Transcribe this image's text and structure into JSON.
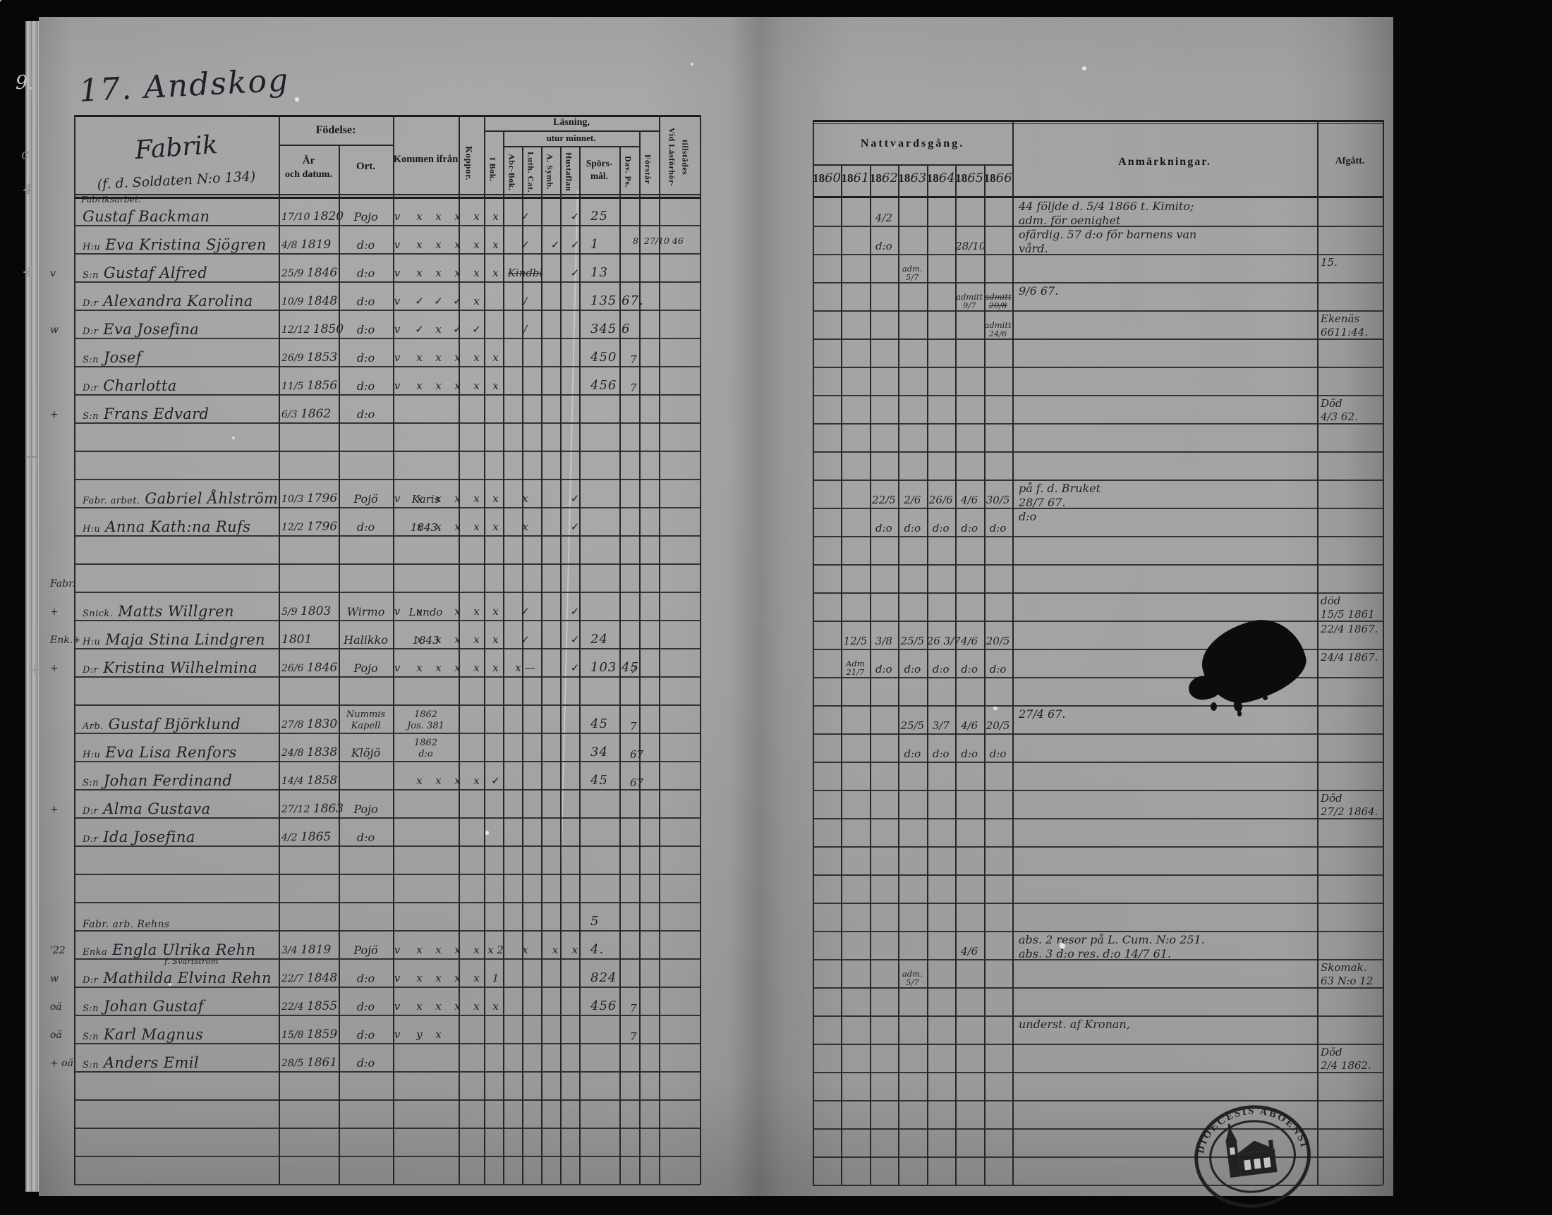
{
  "misc": {
    "title": "17. Andskog",
    "edge_marks": [
      "9.",
      "c",
      "4",
      "+",
      "+",
      "+"
    ],
    "stamp_text": "DIOECESIS ABOENSIS",
    "ink_color": "#20202a",
    "page_color": "#c9c9c9"
  },
  "left_table": {
    "fabrik": "Fabrik",
    "fabrik_sub": "(f. d. Soldaten N:o 134)",
    "fodelse": "Födelse:",
    "ar": "År",
    "och_datum": "och datum.",
    "ort": "Ort.",
    "kommen": "Kommen ifrån",
    "koppor": "Koppor.",
    "lasning": "Läsning,",
    "utur": "utur minnet.",
    "ibok": "I Bok.",
    "abc": "Abc-Bok.",
    "luth": "Luth. Cat.",
    "symb": "A. Symb.",
    "hust": "Hustaflan",
    "spors1": "Spörs-",
    "spors2": "mål.",
    "dav": "Dav. Ps.",
    "forstar": "Förstår",
    "vid1": "Vid Läsförhör-",
    "vid2": "tillstädes",
    "rows": [
      {
        "occ": "Fabriksarbet.",
        "name": "Gustaf Backman",
        "bd": "17/10",
        "by": "1820",
        "ort": "Pojo",
        "chk": [
          "v",
          "x",
          "x",
          "x",
          "x",
          "x",
          "✓",
          "",
          "✓"
        ],
        "till": "25"
      },
      {
        "pre": "H:u",
        "name": "Eva Kristina Sjögren",
        "bd": "4/8",
        "by": "1819",
        "ort": "d:o",
        "chk": [
          "v",
          "x",
          "x",
          "x",
          "x",
          "x",
          "✓",
          "✓",
          "✓"
        ],
        "till": "1",
        "noteR": "8. 27/10 46"
      },
      {
        "m": "v",
        "pre": "S:n",
        "name": "Gustaf Alfred",
        "bd": "25/9",
        "by": "1846",
        "ort": "d:o",
        "chk": [
          "v",
          "x",
          "x",
          "x",
          "x",
          "x",
          "~Kindbl",
          "",
          "✓"
        ],
        "till": "13"
      },
      {
        "pre": "D:r",
        "name": "Alexandra Karolina",
        "bd": "10/9",
        "by": "1848",
        "ort": "d:o",
        "chk": [
          "v",
          "✓",
          "✓",
          "✓",
          "x",
          "",
          "/",
          "",
          ""
        ],
        "till": "135 67."
      },
      {
        "m": "w",
        "pre": "D:r",
        "name": "Eva Josefina",
        "bd": "12/12",
        "by": "1850",
        "ort": "d:o",
        "chk": [
          "v",
          "✓",
          "x",
          "✓",
          "✓",
          "",
          "/",
          "",
          ""
        ],
        "till": "345 6"
      },
      {
        "pre": "S:n",
        "name": "Josef",
        "bd": "26/9",
        "by": "1853",
        "ort": "d:o",
        "chk": [
          "v",
          "x",
          "x",
          "x",
          "x",
          "x",
          "",
          "",
          ""
        ],
        "till": "450",
        "till2": "7"
      },
      {
        "pre": "D:r",
        "name": "Charlotta",
        "bd": "11/5",
        "by": "1856",
        "ort": "d:o",
        "chk": [
          "v",
          "x",
          "x",
          "x",
          "x",
          "x",
          "",
          "",
          ""
        ],
        "till": "456",
        "till2": "7"
      },
      {
        "m": "+",
        "pre": "S:n",
        "name": "Frans Edvard",
        "bd": "6/3",
        "by": "1862",
        "ort": "d:o"
      },
      {},
      {},
      {
        "pre": "Fabr. arbet.",
        "name": "Gabriel Åhlström",
        "bd": "10/3",
        "by": "1796",
        "ort": "Pojö",
        "kom": "Karis",
        "chk": [
          "v",
          "x",
          "x",
          "x",
          "x",
          "x",
          "x",
          "",
          "✓"
        ]
      },
      {
        "pre": "H:u",
        "name": "Anna Kath:na Rufs",
        "bd": "12/2",
        "by": "1796",
        "ort": "d:o",
        "kom": "1843.",
        "chk": [
          "",
          "x",
          "x",
          "x",
          "x",
          "x",
          "x",
          "",
          "✓"
        ]
      },
      {},
      {
        "m": "Fabr."
      },
      {
        "m": "+",
        "pre": "Snick.",
        "name": "Matts Willgren",
        "bd": "5/9",
        "by": "1803",
        "ort": "Wirmo",
        "kom": "Lundo",
        "chk": [
          "v",
          "x",
          "",
          "x",
          "x",
          "x",
          "✓",
          "",
          "✓"
        ]
      },
      {
        "m": "Enk.+",
        "pre": "H:u",
        "name": "Maja Stina Lindgren",
        "bd": "",
        "by": "1801",
        "ort": "Halikko",
        "kom": "1843",
        "chk": [
          "",
          "x",
          "x",
          "x",
          "x",
          "x",
          "✓",
          "",
          "✓"
        ],
        "till": "24"
      },
      {
        "m": "+",
        "pre": "D:r",
        "name": "Kristina Wilhelmina",
        "bd": "26/6",
        "by": "1846",
        "ort": "Pojo",
        "chk": [
          "v",
          "x",
          "x",
          "x",
          "x",
          "x",
          "x —",
          "",
          "✓"
        ],
        "till": "103 45",
        "till2": "7"
      },
      {},
      {
        "pre": "Arb.",
        "name": "Gustaf Björklund",
        "bd": "27/8",
        "by": "1830",
        "ort": "Nummis",
        "ort2": "Kapell",
        "kom": "1862",
        "kom2": "Jos. 381",
        "till": "45",
        "till2": "7"
      },
      {
        "pre": "H:u",
        "name": "Eva Lisa Renfors",
        "bd": "24/8",
        "by": "1838",
        "ort": "Klöjö",
        "kom": "1862",
        "kom2": "d:o",
        "till": "34",
        "till2": "67"
      },
      {
        "pre": "S:n",
        "name": "Johan Ferdinand",
        "bd": "14/4",
        "by": "1858",
        "chk": [
          "",
          "x",
          "x",
          "x",
          "x",
          "✓",
          "",
          "",
          ""
        ],
        "till": "45",
        "till2": "67"
      },
      {
        "m": "+",
        "pre": "D:r",
        "name": "Alma Gustava",
        "bd": "27/12",
        "by": "1863",
        "ort": "Pojo"
      },
      {
        "pre": "D:r",
        "name": "Ida Josefina",
        "bd": "4/2",
        "by": "1865",
        "ort": "d:o"
      },
      {},
      {},
      {
        "sm": 1,
        "name": "Fabr. arb. Rehns",
        "till": "5"
      },
      {
        "m": "'22",
        "pre": "Enka",
        "name": "Engla Ulrika Rehn",
        "sub": "f. Svartström",
        "bd": "3/4",
        "by": "1819",
        "ort": "Pojö",
        "chk": [
          "v",
          "x",
          "x",
          "x",
          "x",
          "x 2",
          "x",
          "x",
          "x"
        ],
        "till": "4."
      },
      {
        "m": "w",
        "pre": "D:r",
        "name": "Mathilda Elvina Rehn",
        "bd": "22/7",
        "by": "1848",
        "ort": "d:o",
        "chk": [
          "v",
          "x",
          "x",
          "x",
          "x",
          "1",
          "",
          "",
          ""
        ],
        "till": "824"
      },
      {
        "m": "oä",
        "pre": "S:n",
        "name": "Johan Gustaf",
        "bd": "22/4",
        "by": "1855",
        "ort": "d:o",
        "chk": [
          "v",
          "x",
          "x",
          "x",
          "x",
          "x",
          "",
          "",
          ""
        ],
        "till": "456",
        "till2": "7"
      },
      {
        "m": "oä",
        "pre": "S:n",
        "name": "Karl Magnus",
        "bd": "15/8",
        "by": "1859",
        "ort": "d:o",
        "chk": [
          "v",
          "y",
          "x",
          "",
          "",
          "",
          "",
          "",
          ""
        ],
        "till2": "7"
      },
      {
        "m": "+ oä",
        "pre": "S:n",
        "name": "Anders Emil",
        "bd": "28/5",
        "by": "1861",
        "ort": "d:o"
      },
      {},
      {},
      {},
      {}
    ]
  },
  "right_table": {
    "natt": "Nattvardsgång.",
    "anm": "Anmärkningar.",
    "afgatt": "Afgått.",
    "year_prefix": "18",
    "years": [
      "60",
      "61",
      "62",
      "63",
      "64",
      "65",
      "66"
    ],
    "rows": [
      {
        "y": [
          "",
          "",
          "4/2",
          "",
          "",
          "",
          ""
        ],
        "anm": [
          "44 följde d. 5/4 1866 t. Kimito;",
          "adm. för oenighet"
        ]
      },
      {
        "y": [
          "",
          "",
          "d:o",
          "",
          "",
          "28/10",
          ""
        ],
        "anm": [
          "ofärdig. 57 d:o för barnens van",
          "vård."
        ]
      },
      {
        "y": [
          "",
          "",
          "",
          "adm. 5/7",
          "",
          "",
          ""
        ],
        "afg": [
          "15."
        ]
      },
      {
        "y": [
          "",
          "",
          "",
          "",
          "",
          "admitt 9/7",
          "~admitt 20/8"
        ],
        "anm": [
          "9/6 67."
        ]
      },
      {
        "y": [
          "",
          "",
          "",
          "",
          "",
          "",
          "admitt 24/6"
        ],
        "afg": [
          "Ekenäs",
          "6611:44."
        ]
      },
      {},
      {},
      {
        "afg": [
          "Död",
          "4/3 62."
        ]
      },
      {},
      {},
      {
        "y": [
          "",
          "",
          "22/5",
          "2/6",
          "26/6",
          "4/6",
          "30/5"
        ],
        "anm": [
          "på f. d. Bruket",
          "28/7 67."
        ]
      },
      {
        "y": [
          "",
          "",
          "d:o",
          "d:o",
          "d:o",
          "d:o",
          "d:o"
        ],
        "anm": [
          "d:o"
        ]
      },
      {},
      {},
      {
        "afg": [
          "död",
          "15/5 1861"
        ]
      },
      {
        "y": [
          "",
          "12/5",
          "3/8",
          "25/5",
          "26 3/7",
          "4/6",
          "20/5"
        ],
        "afg": [
          "22/4 1867."
        ]
      },
      {
        "y": [
          "",
          "Adm 21/7",
          "d:o",
          "d:o",
          "d:o",
          "d:o",
          "d:o"
        ],
        "afg": [
          "24/4 1867."
        ]
      },
      {},
      {
        "y": [
          "",
          "",
          "",
          "25/5",
          "3/7",
          "4/6",
          "20/5"
        ],
        "anm": [
          "27/4 67."
        ]
      },
      {
        "y": [
          "",
          "",
          "",
          "d:o",
          "d:o",
          "d:o",
          "d:o"
        ]
      },
      {},
      {
        "afg": [
          "Död",
          "27/2 1864."
        ]
      },
      {},
      {},
      {},
      {},
      {
        "y": [
          "",
          "",
          "",
          "",
          "",
          "4/6",
          ""
        ],
        "anm": [
          "abs. 2 resor på L.  Cum. N:o 251.",
          "abs. 3 d:o res.  d:o  14/7 61."
        ]
      },
      {
        "y": [
          "",
          "",
          "",
          "adm. 5/7",
          "",
          "",
          ""
        ],
        "afg": [
          "Skomak.",
          "63 N:o 12"
        ]
      },
      {},
      {
        "anm": [
          "underst. af Kronan,"
        ]
      },
      {
        "afg": [
          "Död",
          "2/4 1862."
        ]
      },
      {},
      {},
      {},
      {}
    ]
  }
}
